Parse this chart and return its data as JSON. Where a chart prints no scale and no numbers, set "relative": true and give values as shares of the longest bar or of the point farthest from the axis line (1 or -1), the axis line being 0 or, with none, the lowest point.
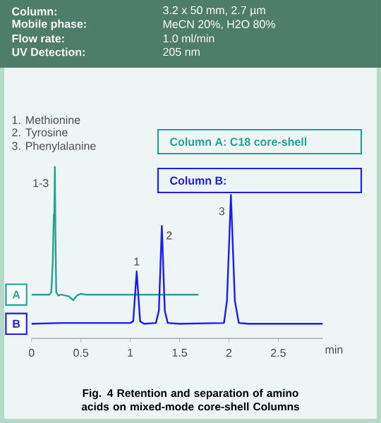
{
  "chart_data": {
    "type": "line",
    "relative": true,
    "title": "Fig. 4  Retention and separation of amino acids on mixed-mode core-shell Columns",
    "xlabel": "min",
    "xlim": [
      0,
      2.95
    ],
    "xticks": [
      0,
      0.5,
      1,
      1.5,
      2,
      2.5
    ],
    "tick_labels": "x",
    "grid": false,
    "marker": "none",
    "line_style": "solid",
    "series": [
      {
        "name": "A",
        "color": "#26a096",
        "x": [
          0,
          0.18,
          0.2,
          0.215,
          0.225,
          0.23,
          0.236,
          0.242,
          0.25,
          0.27,
          0.3,
          0.38,
          0.42,
          0.46,
          0.5,
          0.55,
          1.69
        ],
        "values": [
          0.255,
          0.255,
          0.27,
          0.45,
          0.72,
          0.72,
          1.0,
          0.6,
          0.27,
          0.25,
          0.255,
          0.245,
          0.222,
          0.25,
          0.26,
          0.255,
          0.255
        ]
      },
      {
        "name": "B",
        "color": "#1a1aff",
        "x": [
          0,
          0.3,
          1.0,
          1.03,
          1.065,
          1.1,
          1.14,
          1.26,
          1.29,
          1.32,
          1.35,
          1.38,
          1.5,
          1.95,
          1.98,
          2.02,
          2.06,
          2.1,
          2.2,
          2.95
        ],
        "values": [
          0.085,
          0.09,
          0.09,
          0.1,
          0.39,
          0.1,
          0.085,
          0.09,
          0.16,
          0.655,
          0.16,
          0.09,
          0.085,
          0.09,
          0.22,
          0.836,
          0.22,
          0.09,
          0.085,
          0.085
        ]
      }
    ],
    "annotations": [
      "Column:",
      "3.2 x 50 mm, 2.7 µm",
      "Mobile phase:",
      "MeCN 20%,  H2O 80%",
      "Flow rate:",
      "1.0 ml/min",
      "UV Detection:",
      "205 nm",
      "1.   Methionine",
      "2.   Tyrosine",
      "3.   Phenylalanine",
      "Column A: C18 core-shell",
      "Column B:",
      {
        "text": "1-3",
        "x": 0.236,
        "y": 1.0
      },
      {
        "text": "1",
        "x": 1.065,
        "y": 0.39
      },
      {
        "text": "2",
        "x": 1.32,
        "y": 0.655
      },
      {
        "text": "3",
        "x": 2.02,
        "y": 0.836
      }
    ]
  }
}
